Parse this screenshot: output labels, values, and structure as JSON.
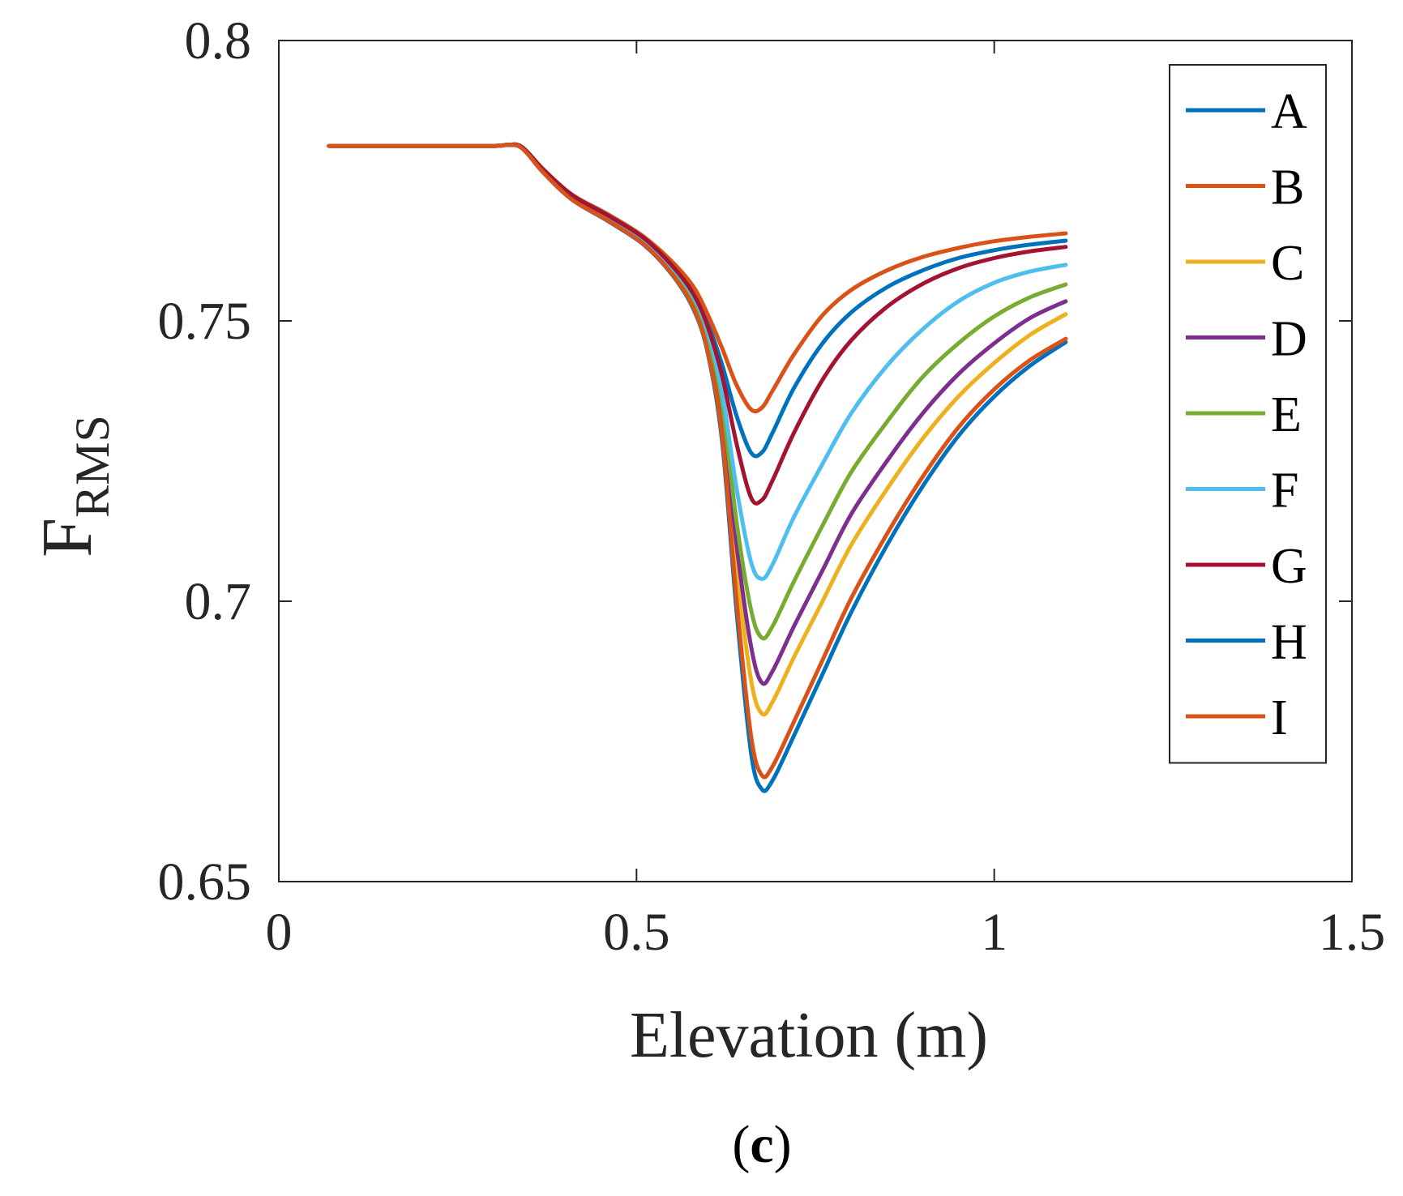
{
  "chart_data": {
    "type": "line",
    "title": "",
    "xlabel": "Elevation (m)",
    "ylabel": {
      "main": "F",
      "subscript": "RMS"
    },
    "xlim": [
      0,
      1.5
    ],
    "ylim": [
      0.65,
      0.8
    ],
    "xticks": [
      {
        "value": 0,
        "label": "0"
      },
      {
        "value": 0.5,
        "label": "0.5"
      },
      {
        "value": 1,
        "label": "1"
      },
      {
        "value": 1.5,
        "label": "1.5"
      }
    ],
    "yticks": [
      {
        "value": 0.65,
        "label": "0.65"
      },
      {
        "value": 0.7,
        "label": "0.7"
      },
      {
        "value": 0.75,
        "label": "0.75"
      },
      {
        "value": 0.8,
        "label": "0.8"
      }
    ],
    "grid": false,
    "legend_position": "top-right",
    "caption": {
      "open": "(",
      "letter": "c",
      "close": ")"
    },
    "x": [
      0.07,
      0.2,
      0.3,
      0.32,
      0.34,
      0.37,
      0.41,
      0.46,
      0.51,
      0.55,
      0.58,
      0.6,
      0.62,
      0.64,
      0.66,
      0.675,
      0.69,
      0.72,
      0.76,
      0.8,
      0.85,
      0.9,
      0.95,
      1.0,
      1.05,
      1.1
    ],
    "series": [
      {
        "name": "A",
        "color": "#0072BD",
        "values": [
          0.7812,
          0.7812,
          0.7812,
          0.7814,
          0.781,
          0.777,
          0.7725,
          0.769,
          0.765,
          0.76,
          0.755,
          0.7495,
          0.742,
          0.733,
          0.7265,
          0.7265,
          0.73,
          0.738,
          0.746,
          0.7515,
          0.756,
          0.759,
          0.7612,
          0.7626,
          0.7636,
          0.7643
        ]
      },
      {
        "name": "B",
        "color": "#D95319",
        "values": [
          0.7812,
          0.7812,
          0.7812,
          0.7814,
          0.781,
          0.777,
          0.7725,
          0.769,
          0.765,
          0.7605,
          0.756,
          0.751,
          0.745,
          0.7385,
          0.7342,
          0.7345,
          0.7375,
          0.744,
          0.751,
          0.7555,
          0.759,
          0.7614,
          0.763,
          0.7642,
          0.765,
          0.7656
        ]
      },
      {
        "name": "C",
        "color": "#EDB120",
        "values": [
          0.7812,
          0.7812,
          0.7812,
          0.7814,
          0.7808,
          0.7766,
          0.772,
          0.7682,
          0.764,
          0.7588,
          0.7532,
          0.746,
          0.732,
          0.706,
          0.686,
          0.68,
          0.682,
          0.69,
          0.7,
          0.71,
          0.72,
          0.729,
          0.7365,
          0.7425,
          0.7475,
          0.7512
        ]
      },
      {
        "name": "D",
        "color": "#7E2F8E",
        "values": [
          0.7812,
          0.7812,
          0.7812,
          0.7814,
          0.7808,
          0.7766,
          0.772,
          0.7683,
          0.7642,
          0.759,
          0.7535,
          0.7465,
          0.7335,
          0.71,
          0.692,
          0.6855,
          0.6875,
          0.6955,
          0.7055,
          0.7155,
          0.725,
          0.7335,
          0.7405,
          0.746,
          0.7505,
          0.7535
        ]
      },
      {
        "name": "E",
        "color": "#77AC30",
        "values": [
          0.7812,
          0.7812,
          0.7812,
          0.7814,
          0.7809,
          0.7767,
          0.7721,
          0.7684,
          0.7643,
          0.7592,
          0.7538,
          0.747,
          0.735,
          0.714,
          0.6985,
          0.6935,
          0.6955,
          0.7035,
          0.7135,
          0.723,
          0.732,
          0.74,
          0.746,
          0.7508,
          0.7542,
          0.7565
        ]
      },
      {
        "name": "F",
        "color": "#4DBEEE",
        "values": [
          0.7812,
          0.7812,
          0.7812,
          0.7814,
          0.7809,
          0.7768,
          0.7722,
          0.7686,
          0.7645,
          0.7595,
          0.7542,
          0.7478,
          0.737,
          0.72,
          0.707,
          0.704,
          0.7065,
          0.715,
          0.7245,
          0.7335,
          0.742,
          0.7485,
          0.7535,
          0.7568,
          0.7588,
          0.76
        ]
      },
      {
        "name": "G",
        "color": "#A2142F",
        "values": [
          0.7812,
          0.7812,
          0.7812,
          0.7814,
          0.781,
          0.7769,
          0.7724,
          0.7688,
          0.7648,
          0.7598,
          0.7547,
          0.7488,
          0.74,
          0.728,
          0.7185,
          0.718,
          0.7215,
          0.73,
          0.7395,
          0.7465,
          0.7525,
          0.7566,
          0.7594,
          0.7612,
          0.7624,
          0.7632
        ]
      },
      {
        "name": "H",
        "color": "#0072BD",
        "values": [
          0.7812,
          0.7812,
          0.7812,
          0.7814,
          0.7808,
          0.7764,
          0.7716,
          0.7678,
          0.7636,
          0.7582,
          0.752,
          0.744,
          0.728,
          0.698,
          0.673,
          0.6665,
          0.668,
          0.676,
          0.687,
          0.698,
          0.71,
          0.7205,
          0.7295,
          0.7365,
          0.742,
          0.7462
        ]
      },
      {
        "name": "I",
        "color": "#D95319",
        "values": [
          0.7812,
          0.7812,
          0.7812,
          0.7814,
          0.7808,
          0.7764,
          0.7716,
          0.7679,
          0.7637,
          0.7583,
          0.7522,
          0.7443,
          0.729,
          0.7,
          0.676,
          0.669,
          0.6705,
          0.6785,
          0.6895,
          0.7005,
          0.712,
          0.7222,
          0.731,
          0.7378,
          0.743,
          0.7468
        ]
      }
    ]
  }
}
